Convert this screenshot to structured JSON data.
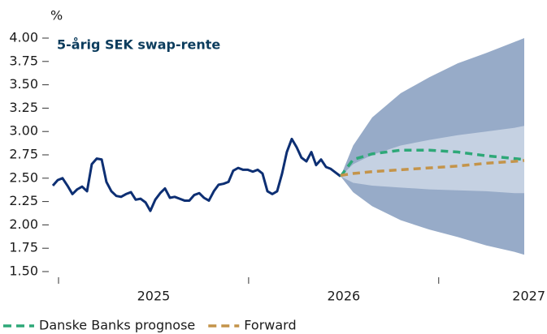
{
  "chart_data": {
    "type": "line",
    "title": "5-årig SEK swap-rente",
    "y_unit": "%",
    "xlim": [
      2024.47,
      2026.95
    ],
    "xticks": [
      2025,
      2026,
      2027
    ],
    "xminor_ticks": [
      2024.5,
      2025.5,
      2026.5
    ],
    "ylim": [
      1.5,
      4.0
    ],
    "yticks": [
      {
        "value": 1.5,
        "label": "1.50"
      },
      {
        "value": 1.75,
        "label": "1.75"
      },
      {
        "value": 2.0,
        "label": "2.00"
      },
      {
        "value": 2.25,
        "label": "2.25"
      },
      {
        "value": 2.5,
        "label": "2.50"
      },
      {
        "value": 2.75,
        "label": "2.75"
      },
      {
        "value": 3.0,
        "label": "3.00"
      },
      {
        "value": 3.25,
        "label": "3.25"
      },
      {
        "value": 3.5,
        "label": "3.50"
      },
      {
        "value": 3.75,
        "label": "3.75"
      },
      {
        "value": 4.0,
        "label": "4.00"
      }
    ],
    "bands": [
      {
        "color": "#97abc8",
        "x": [
          2025.984,
          2026.05,
          2026.15,
          2026.3,
          2026.45,
          2026.6,
          2026.75,
          2026.9,
          2026.95
        ],
        "upper": [
          2.52,
          2.85,
          3.15,
          3.41,
          3.58,
          3.73,
          3.84,
          3.96,
          4.0
        ],
        "lower": [
          2.52,
          2.35,
          2.2,
          2.05,
          1.95,
          1.87,
          1.78,
          1.71,
          1.68
        ]
      },
      {
        "color": "#c5d1e2",
        "x": [
          2025.984,
          2026.05,
          2026.15,
          2026.3,
          2026.45,
          2026.6,
          2026.75,
          2026.9,
          2026.95
        ],
        "upper": [
          2.52,
          2.65,
          2.75,
          2.85,
          2.91,
          2.96,
          3.0,
          3.04,
          3.06
        ],
        "lower": [
          2.52,
          2.45,
          2.42,
          2.4,
          2.38,
          2.37,
          2.36,
          2.34,
          2.34
        ]
      }
    ],
    "series": [
      {
        "color": "#0d2f73",
        "dashed": false,
        "x": [
          2024.47,
          2024.496,
          2024.521,
          2024.547,
          2024.573,
          2024.598,
          2024.624,
          2024.65,
          2024.675,
          2024.701,
          2024.727,
          2024.752,
          2024.778,
          2024.804,
          2024.829,
          2024.855,
          2024.881,
          2024.906,
          2024.932,
          2024.958,
          2024.983,
          2025.009,
          2025.035,
          2025.06,
          2025.086,
          2025.111,
          2025.137,
          2025.163,
          2025.188,
          2025.214,
          2025.24,
          2025.265,
          2025.291,
          2025.317,
          2025.342,
          2025.368,
          2025.394,
          2025.419,
          2025.445,
          2025.471,
          2025.496,
          2025.522,
          2025.548,
          2025.573,
          2025.599,
          2025.625,
          2025.65,
          2025.676,
          2025.701,
          2025.727,
          2025.753,
          2025.778,
          2025.804,
          2025.83,
          2025.855,
          2025.881,
          2025.907,
          2025.932,
          2025.958,
          2025.984
        ],
        "values": [
          2.42,
          2.48,
          2.5,
          2.42,
          2.33,
          2.38,
          2.41,
          2.36,
          2.65,
          2.71,
          2.7,
          2.46,
          2.36,
          2.31,
          2.3,
          2.33,
          2.35,
          2.27,
          2.28,
          2.24,
          2.15,
          2.27,
          2.34,
          2.39,
          2.29,
          2.3,
          2.28,
          2.26,
          2.26,
          2.32,
          2.34,
          2.29,
          2.26,
          2.36,
          2.43,
          2.44,
          2.46,
          2.58,
          2.61,
          2.59,
          2.59,
          2.57,
          2.59,
          2.55,
          2.36,
          2.33,
          2.36,
          2.55,
          2.78,
          2.92,
          2.83,
          2.72,
          2.68,
          2.78,
          2.64,
          2.7,
          2.62,
          2.6,
          2.56,
          2.52
        ]
      },
      {
        "name": "Danske Banks prognose",
        "color": "#2ea878",
        "dashed": true,
        "x": [
          2025.984,
          2026.05,
          2026.15,
          2026.3,
          2026.45,
          2026.6,
          2026.75,
          2026.9,
          2026.95
        ],
        "values": [
          2.52,
          2.7,
          2.76,
          2.8,
          2.8,
          2.78,
          2.74,
          2.71,
          2.7
        ]
      },
      {
        "name": "Forward",
        "color": "#c4944a",
        "dashed": true,
        "x": [
          2025.984,
          2026.05,
          2026.15,
          2026.3,
          2026.45,
          2026.6,
          2026.75,
          2026.9,
          2026.95
        ],
        "values": [
          2.53,
          2.55,
          2.57,
          2.59,
          2.61,
          2.63,
          2.66,
          2.68,
          2.69
        ]
      }
    ]
  }
}
